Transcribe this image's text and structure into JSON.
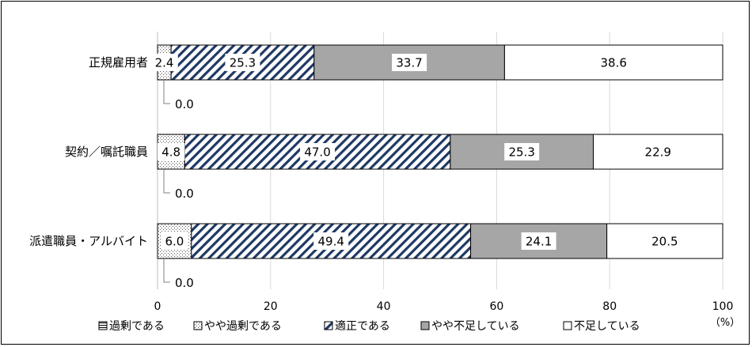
{
  "chart_data": {
    "type": "bar",
    "orientation": "horizontal",
    "stacked": true,
    "categories": [
      "正規雇用者",
      "契約／嘱託職員",
      "派遣職員・アルバイト"
    ],
    "series": [
      {
        "name": "過剰である",
        "values": [
          0.0,
          0.0,
          0.0
        ],
        "color": "#000000"
      },
      {
        "name": "やや過剰である",
        "values": [
          2.4,
          4.8,
          6.0
        ],
        "color": "#808080"
      },
      {
        "name": "適正である",
        "values": [
          25.3,
          47.0,
          49.4
        ],
        "color": "#1f3864"
      },
      {
        "name": "やや不足している",
        "values": [
          33.7,
          25.3,
          24.1
        ],
        "color": "#a6a6a6"
      },
      {
        "name": "不足している",
        "values": [
          38.6,
          22.9,
          20.5
        ],
        "color": "#ffffff"
      }
    ],
    "data_labels": [
      [
        "0.0",
        "2.4",
        "25.3",
        "33.7",
        "38.6"
      ],
      [
        "0.0",
        "4.8",
        "47.0",
        "25.3",
        "22.9"
      ],
      [
        "0.0",
        "6.0",
        "49.4",
        "24.1",
        "20.5"
      ]
    ],
    "x_ticks": [
      "0",
      "20",
      "40",
      "60",
      "80",
      "100"
    ],
    "xlim": [
      0,
      100
    ],
    "unit_label": "（%）",
    "grid": true,
    "legend_position": "bottom"
  }
}
